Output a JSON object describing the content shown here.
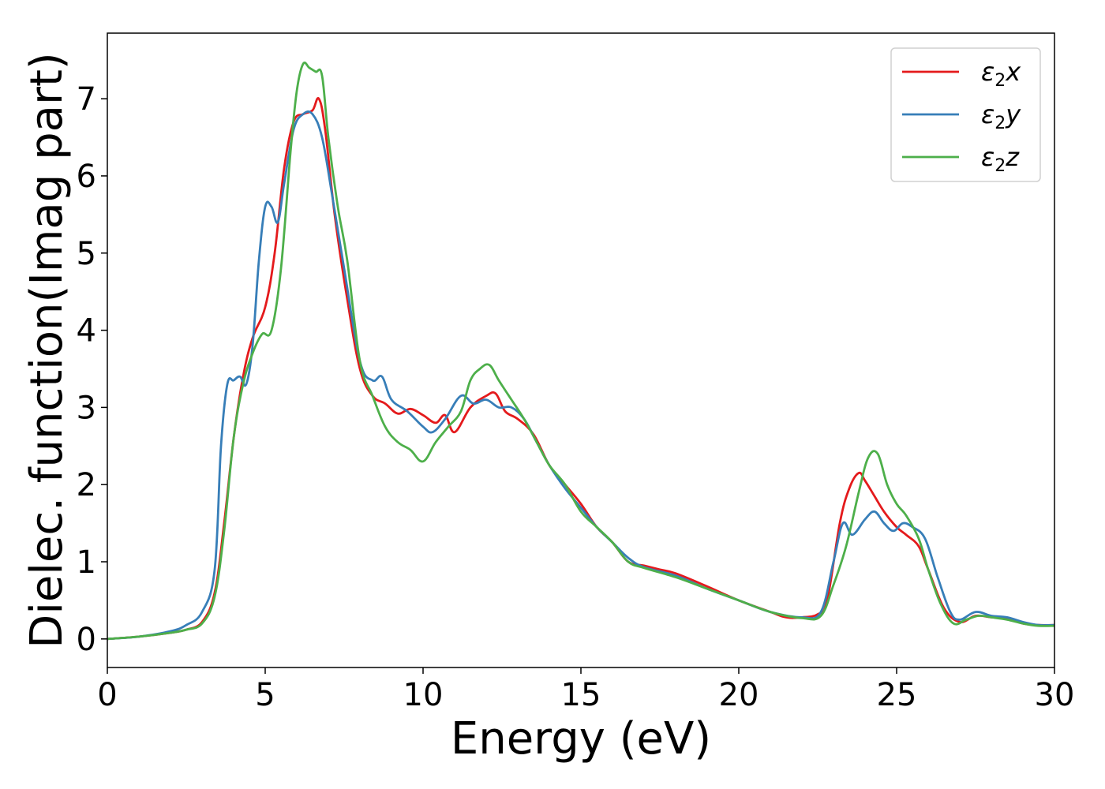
{
  "chart_data": {
    "type": "line",
    "xlabel": "Energy (eV)",
    "ylabel": "Dielec. function(Imag part)",
    "xlim": [
      0,
      30
    ],
    "ylim": [
      -0.37,
      7.85
    ],
    "xticks": [
      0,
      5,
      10,
      15,
      20,
      25,
      30
    ],
    "yticks": [
      0,
      1,
      2,
      3,
      4,
      5,
      6,
      7
    ],
    "grid": false,
    "legend_position": "top-right",
    "series": [
      {
        "name": "ε₂x",
        "legend_base": "ε",
        "legend_sub": "2",
        "legend_tail": "x",
        "color": "#e41a1c",
        "x": [
          0,
          1,
          2,
          2.5,
          3,
          3.4,
          3.7,
          4.0,
          4.3,
          4.6,
          5.0,
          5.3,
          5.6,
          5.9,
          6.2,
          6.5,
          6.7,
          6.9,
          7.2,
          7.6,
          8.0,
          8.4,
          8.8,
          9.2,
          9.6,
          10.0,
          10.4,
          10.7,
          11.0,
          11.5,
          12.0,
          12.3,
          12.6,
          13.0,
          13.5,
          14.0,
          14.5,
          15.0,
          15.5,
          16.0,
          16.5,
          17.0,
          17.5,
          18.0,
          19.0,
          20.0,
          21.0,
          21.5,
          22.0,
          22.5,
          22.8,
          23.2,
          23.5,
          23.8,
          24.0,
          24.3,
          24.6,
          25.0,
          25.3,
          25.7,
          26.0,
          26.5,
          27.0,
          27.5,
          28.0,
          28.5,
          29.0,
          29.5,
          30.0
        ],
        "y": [
          0.0,
          0.03,
          0.08,
          0.12,
          0.22,
          0.6,
          1.5,
          2.6,
          3.4,
          3.9,
          4.3,
          5.0,
          6.1,
          6.7,
          6.8,
          6.85,
          7.0,
          6.6,
          5.5,
          4.4,
          3.5,
          3.15,
          3.05,
          2.92,
          2.98,
          2.9,
          2.8,
          2.9,
          2.68,
          3.0,
          3.15,
          3.18,
          2.95,
          2.85,
          2.65,
          2.25,
          2.0,
          1.75,
          1.45,
          1.25,
          1.0,
          0.95,
          0.9,
          0.85,
          0.68,
          0.5,
          0.35,
          0.28,
          0.28,
          0.32,
          0.5,
          1.5,
          1.95,
          2.15,
          2.05,
          1.85,
          1.65,
          1.45,
          1.35,
          1.2,
          0.9,
          0.4,
          0.22,
          0.3,
          0.28,
          0.27,
          0.2,
          0.18,
          0.18
        ]
      },
      {
        "name": "ε₂y",
        "legend_base": "ε",
        "legend_sub": "2",
        "legend_tail": "y",
        "color": "#377eb8",
        "x": [
          0,
          1,
          2,
          2.5,
          3,
          3.4,
          3.6,
          3.8,
          4.0,
          4.2,
          4.4,
          4.6,
          4.8,
          5.0,
          5.2,
          5.4,
          5.6,
          5.9,
          6.2,
          6.5,
          6.8,
          7.1,
          7.5,
          8.0,
          8.4,
          8.7,
          9.0,
          9.5,
          10.0,
          10.3,
          10.7,
          11.2,
          11.6,
          12.0,
          12.4,
          12.8,
          13.2,
          13.6,
          14.0,
          14.5,
          15.0,
          15.5,
          16.0,
          16.5,
          17.0,
          18.0,
          19.0,
          20.0,
          21.0,
          22.0,
          22.6,
          23.0,
          23.3,
          23.6,
          24.0,
          24.3,
          24.6,
          24.9,
          25.2,
          25.5,
          25.9,
          26.3,
          26.7,
          27.0,
          27.5,
          28.0,
          28.5,
          29.0,
          29.5,
          30.0
        ],
        "y": [
          0.0,
          0.03,
          0.1,
          0.18,
          0.35,
          0.9,
          2.5,
          3.3,
          3.35,
          3.4,
          3.3,
          3.8,
          4.9,
          5.6,
          5.6,
          5.4,
          5.9,
          6.6,
          6.8,
          6.8,
          6.5,
          5.8,
          4.8,
          3.6,
          3.35,
          3.4,
          3.1,
          2.95,
          2.75,
          2.68,
          2.85,
          3.15,
          3.05,
          3.1,
          3.0,
          3.0,
          2.85,
          2.55,
          2.25,
          1.95,
          1.7,
          1.45,
          1.25,
          1.05,
          0.93,
          0.82,
          0.65,
          0.5,
          0.35,
          0.28,
          0.35,
          1.0,
          1.5,
          1.35,
          1.55,
          1.65,
          1.5,
          1.4,
          1.5,
          1.45,
          1.3,
          0.8,
          0.35,
          0.25,
          0.35,
          0.3,
          0.28,
          0.22,
          0.18,
          0.18
        ]
      },
      {
        "name": "ε₂z",
        "legend_base": "ε",
        "legend_sub": "2",
        "legend_tail": "z",
        "color": "#4daf4a",
        "x": [
          0,
          1,
          2,
          2.5,
          3,
          3.4,
          3.7,
          4.0,
          4.3,
          4.6,
          4.9,
          5.2,
          5.5,
          5.8,
          6.0,
          6.2,
          6.4,
          6.6,
          6.8,
          7.0,
          7.3,
          7.6,
          8.0,
          8.4,
          8.8,
          9.2,
          9.6,
          10.0,
          10.4,
          10.8,
          11.2,
          11.5,
          11.8,
          12.1,
          12.4,
          12.8,
          13.2,
          13.6,
          14.0,
          14.5,
          15.0,
          15.5,
          16.0,
          16.5,
          17.0,
          18.0,
          19.0,
          20.0,
          21.0,
          22.0,
          22.6,
          23.0,
          23.4,
          23.8,
          24.1,
          24.4,
          24.7,
          25.0,
          25.3,
          25.7,
          26.0,
          26.4,
          26.8,
          27.2,
          27.6,
          28.0,
          28.5,
          29.0,
          29.5,
          30.0
        ],
        "y": [
          0.0,
          0.03,
          0.08,
          0.12,
          0.2,
          0.55,
          1.4,
          2.6,
          3.3,
          3.7,
          3.95,
          4.0,
          4.8,
          6.3,
          7.1,
          7.45,
          7.4,
          7.35,
          7.3,
          6.5,
          5.6,
          4.9,
          3.6,
          3.15,
          2.75,
          2.55,
          2.45,
          2.3,
          2.55,
          2.75,
          2.95,
          3.35,
          3.5,
          3.55,
          3.35,
          3.1,
          2.85,
          2.55,
          2.25,
          2.0,
          1.65,
          1.45,
          1.25,
          1.0,
          0.92,
          0.8,
          0.65,
          0.5,
          0.35,
          0.27,
          0.3,
          0.7,
          1.2,
          1.9,
          2.35,
          2.4,
          2.0,
          1.75,
          1.6,
          1.3,
          0.9,
          0.45,
          0.2,
          0.25,
          0.3,
          0.28,
          0.25,
          0.2,
          0.17,
          0.17
        ]
      }
    ]
  }
}
